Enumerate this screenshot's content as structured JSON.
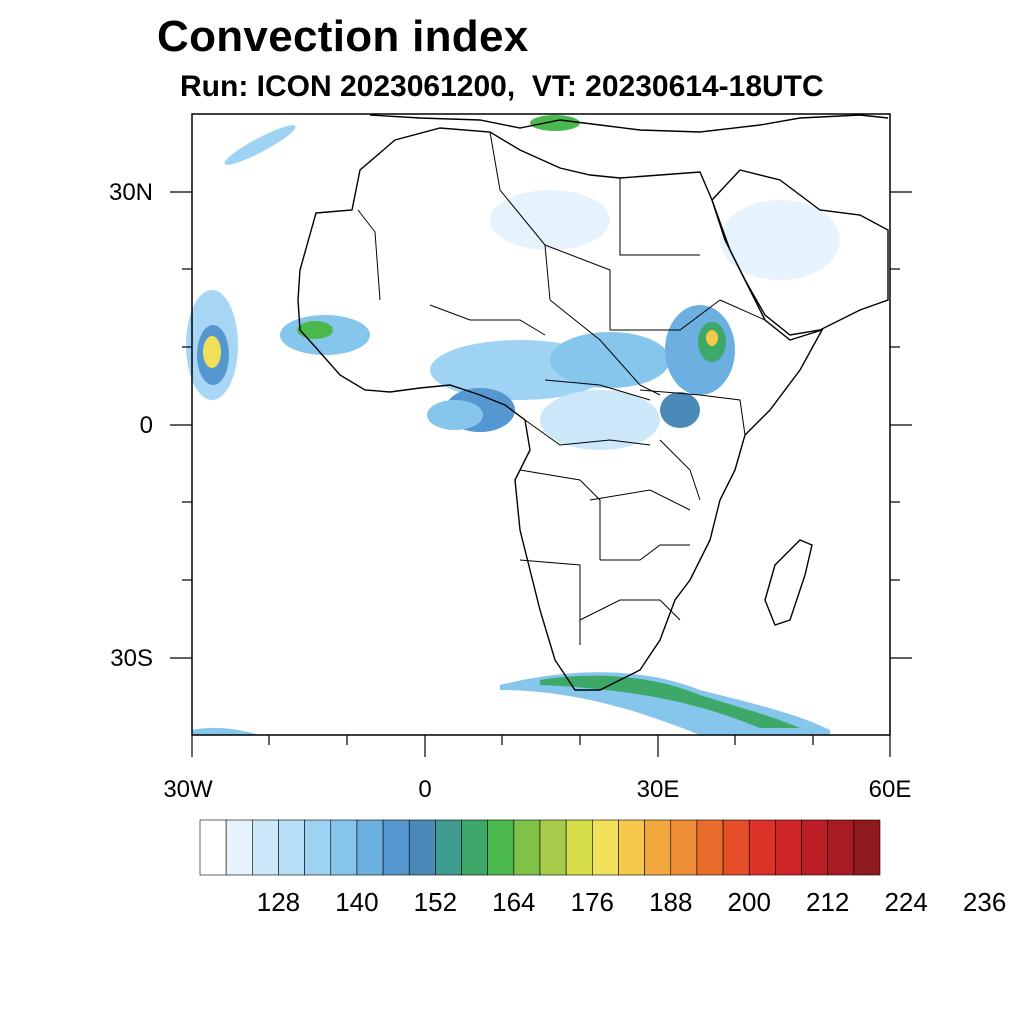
{
  "title": "Convection index",
  "subtitle": "Run: ICON 2023061200,  VT: 20230614-18UTC",
  "map": {
    "lon_range": [
      -30,
      60
    ],
    "lat_range": [
      -40,
      40
    ],
    "lon_ticks": [
      {
        "value": -30,
        "label": "30W"
      },
      {
        "value": 0,
        "label": "0"
      },
      {
        "value": 30,
        "label": "30E"
      },
      {
        "value": 60,
        "label": "60E"
      }
    ],
    "lat_ticks": [
      {
        "value": 30,
        "label": "30N"
      },
      {
        "value": 0,
        "label": "0"
      },
      {
        "value": -30,
        "label": "30S"
      }
    ]
  },
  "colorbar": {
    "colors": [
      "#ffffff",
      "#e6f3fc",
      "#cce8f8",
      "#b6def6",
      "#9fd3f4",
      "#86c5ec",
      "#6bb0e0",
      "#5597d0",
      "#4a89b8",
      "#3f9b8e",
      "#3ea868",
      "#4bb84e",
      "#80c247",
      "#a8cc4a",
      "#d6dd4a",
      "#f1e05a",
      "#f7c94a",
      "#f3a83d",
      "#ee8d35",
      "#ea6c2d",
      "#e44e29",
      "#dd3228",
      "#cf2428",
      "#bb1f25",
      "#a91b22",
      "#8f1a1d"
    ],
    "labels": [
      "128",
      "140",
      "152",
      "164",
      "176",
      "188",
      "200",
      "212",
      "224",
      "236"
    ]
  }
}
